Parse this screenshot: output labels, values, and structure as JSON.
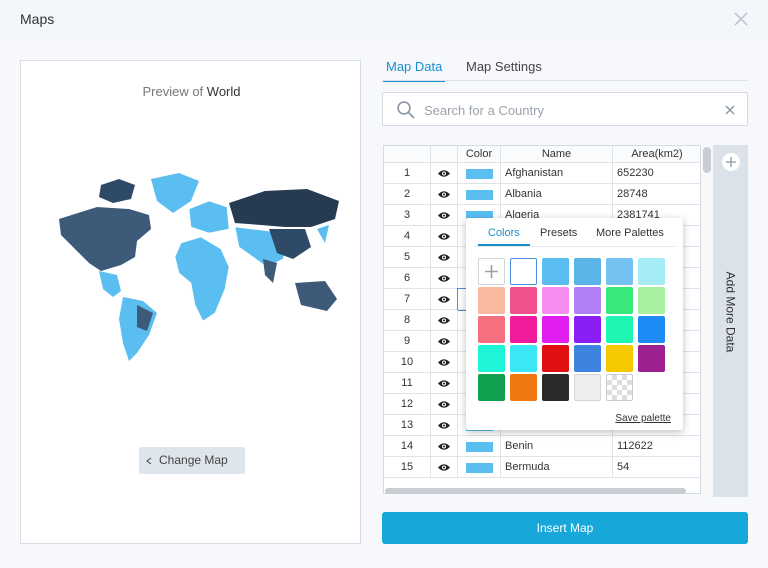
{
  "header": {
    "title": "Maps"
  },
  "preview": {
    "label_prefix": "Preview of",
    "map_name": "World",
    "button": "Change Map"
  },
  "tabs": [
    "Map Data",
    "Map Settings"
  ],
  "search": {
    "placeholder": "Search for a Country"
  },
  "table": {
    "columns": [
      "Color",
      "Name",
      "Area(km2)"
    ],
    "rows": [
      {
        "number": 1,
        "name": "Afghanistan",
        "area": 652230
      },
      {
        "number": 2,
        "name": "Albania",
        "area": 28748
      },
      {
        "number": 3,
        "name": "Algeria",
        "area": 2381741
      },
      {
        "number": 4
      },
      {
        "number": 5
      },
      {
        "number": 6
      },
      {
        "number": 7
      },
      {
        "number": 8
      },
      {
        "number": 9
      },
      {
        "number": 10
      },
      {
        "number": 11
      },
      {
        "number": 12
      },
      {
        "number": 13
      },
      {
        "number": 14,
        "name": "Benin",
        "area": 112622
      },
      {
        "number": 15,
        "name": "Bermuda",
        "area": 54
      }
    ]
  },
  "sidebar": {
    "label": "Add More Data"
  },
  "popup": {
    "tabs": [
      "Colors",
      "Presets",
      "More Palettes"
    ],
    "save": "Save palette",
    "palette": [
      "#ffffff",
      "#5bbef0",
      "#5ab4e8",
      "#73c2f2",
      "#a6ecf7",
      "#f9b8a0",
      "#f0508c",
      "#f58ef0",
      "#b07ef5",
      "#39e87b",
      "#a8f0a0",
      "#f4707e",
      "#f01c9c",
      "#e01ef0",
      "#8a1ef5",
      "#1ef5b0",
      "#1e8af5",
      "#1ef5d8",
      "#3ae8f5",
      "#e01010",
      "#3c84e0",
      "#f5c800",
      "#9c2090",
      "#10a050",
      "#f07810",
      "#2a2a2a",
      "#eeeeee"
    ]
  },
  "insert_button": "Insert Map"
}
